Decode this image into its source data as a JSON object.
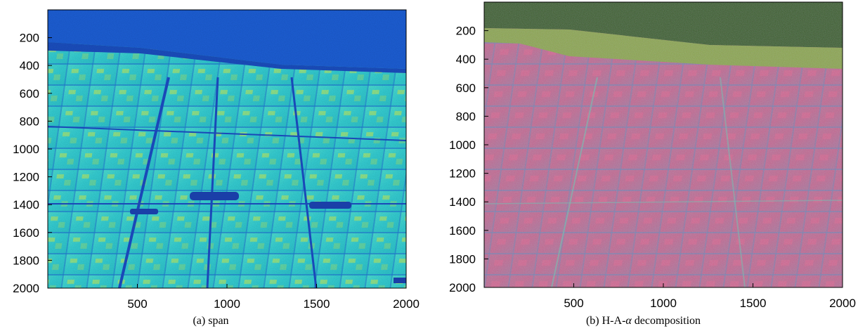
{
  "panels": [
    {
      "caption": "(a) span",
      "x_ticks": [
        "500",
        "1000",
        "1500",
        "2000"
      ],
      "y_ticks": [
        "200",
        "400",
        "600",
        "800",
        "1000",
        "1200",
        "1400",
        "1600",
        "1800",
        "2000"
      ],
      "palette": {
        "water": "#1d5fd6",
        "land": "#3ad6d0",
        "bright": "#b5ea5a",
        "dark": "#1a3fa8"
      }
    },
    {
      "caption_prefix": "(b) H-A-",
      "caption_symbol": "α",
      "caption_suffix": " decomposition",
      "x_ticks": [
        "500",
        "1000",
        "1500",
        "2000"
      ],
      "y_ticks": [
        "200",
        "400",
        "600",
        "800",
        "1000",
        "1200",
        "1400",
        "1600",
        "1800",
        "2000"
      ],
      "palette": {
        "water": "#3d5a2c",
        "shore": "#8aa04a",
        "land": "#c86a8a",
        "blue": "#6a7fb0",
        "cyan": "#7fb7b0"
      }
    }
  ]
}
